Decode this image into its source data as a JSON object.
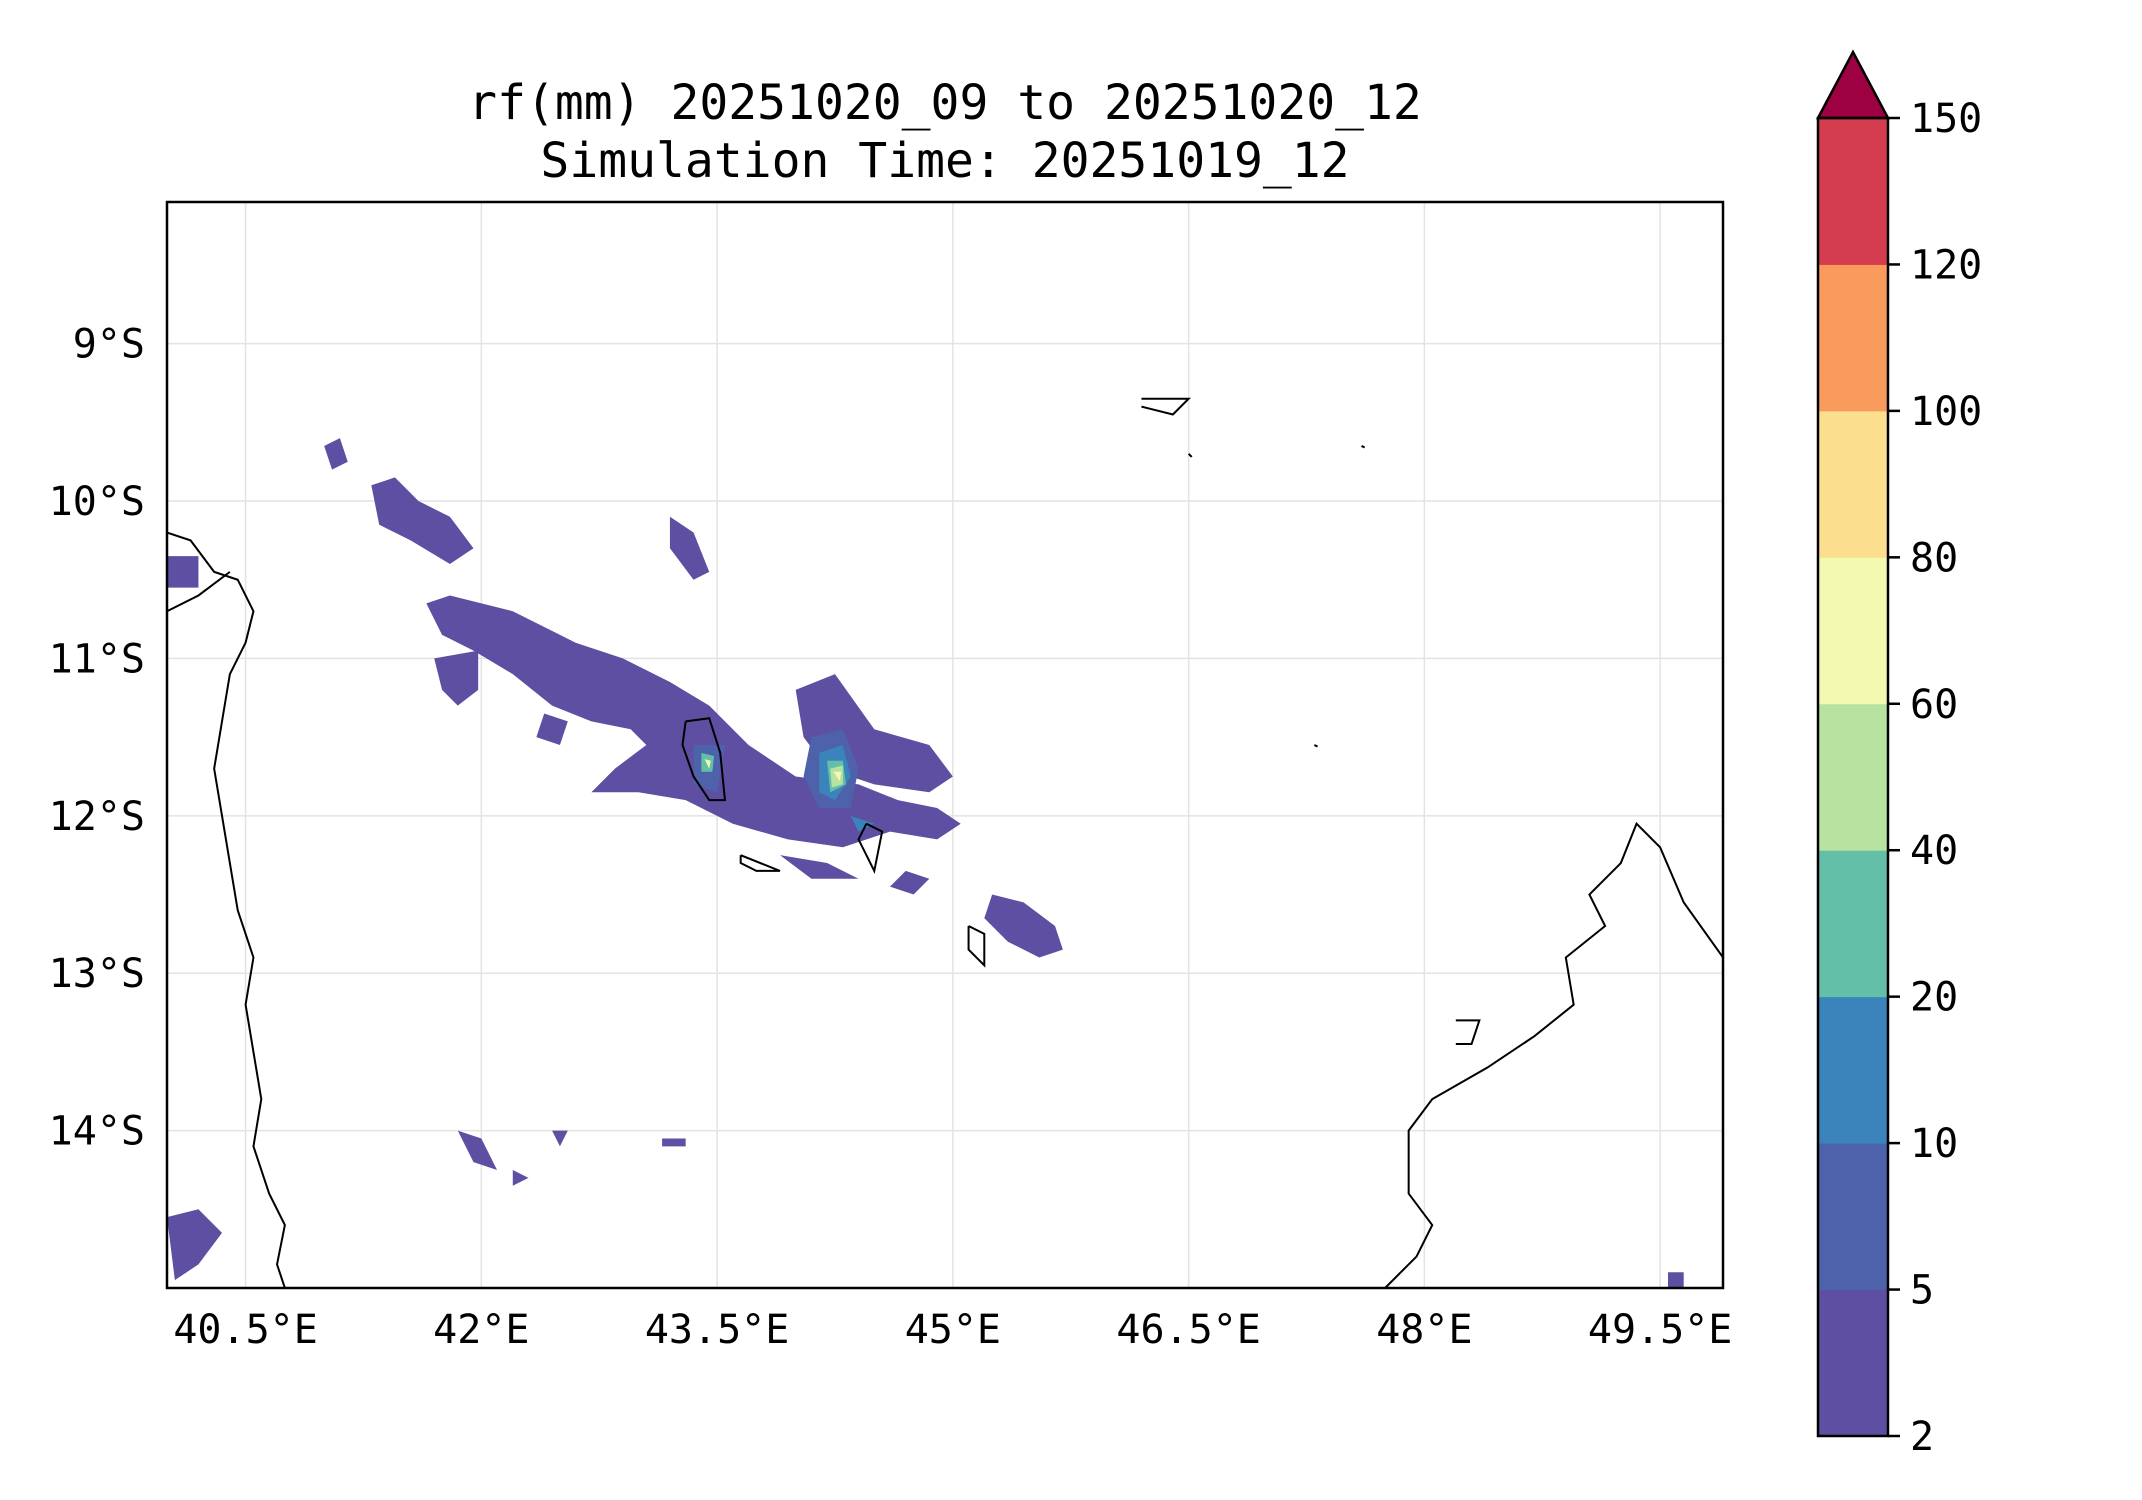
{
  "title": {
    "line1": "rf(mm) 20251020_09 to 20251020_12",
    "line2": "Simulation Time: 20251019_12"
  },
  "map": {
    "lon_ticks": [
      "40.5°E",
      "42°E",
      "43.5°E",
      "45°E",
      "46.5°E",
      "48°E",
      "49.5°E"
    ],
    "lat_ticks": [
      "9°S",
      "10°S",
      "11°S",
      "12°S",
      "13°S",
      "14°S"
    ],
    "lon_range": [
      40.0,
      49.9
    ],
    "lat_range": [
      -15.0,
      -8.1
    ],
    "gridlines": true
  },
  "colorbar": {
    "levels": [
      2,
      5,
      10,
      20,
      40,
      60,
      80,
      100,
      120,
      150
    ],
    "tick_labels": [
      "2",
      "5",
      "10",
      "20",
      "40",
      "60",
      "80",
      "100",
      "120",
      "150"
    ],
    "colors": [
      "#5e4fa2",
      "#4e61ab",
      "#3a84bb",
      "#64bfa9",
      "#b8e2a0",
      "#f2f9b0",
      "#fbdf8f",
      "#f99b5d",
      "#d43d4f"
    ],
    "extend_color": "#9e0142",
    "extend": "max"
  },
  "features": {
    "coastline_color": "#000000",
    "rain_units": "mm"
  }
}
